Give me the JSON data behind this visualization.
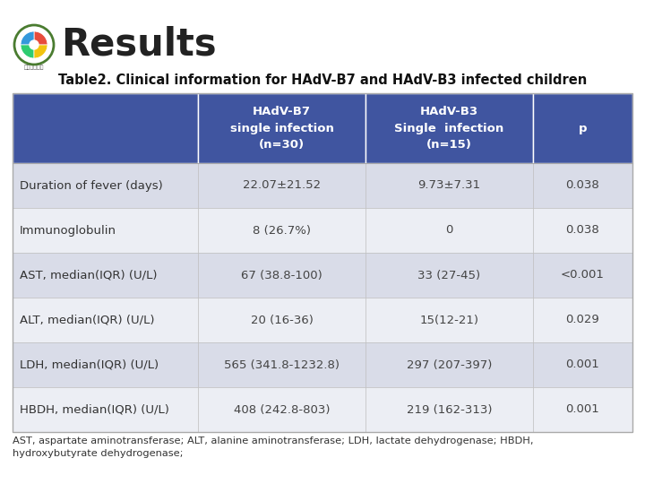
{
  "title": "Results",
  "subtitle": "Table2. Clinical information for HAdV-B7 and HAdV-B3 infected children",
  "header_bg": "#4055a0",
  "header_text_color": "#ffffff",
  "row_bg_odd": "#d9dce8",
  "row_bg_even": "#eceef4",
  "col_header": [
    "HAdV-B7\nsingle infection\n(n=30)",
    "HAdV-B3\nSingle  infection\n(n=15)",
    "p"
  ],
  "row_labels": [
    "Duration of fever (days)",
    "Immunoglobulin",
    "AST, median(IQR) (U/L)",
    "ALT, median(IQR) (U/L)",
    "LDH, median(IQR) (U/L)",
    "HBDH, median(IQR) (U/L)"
  ],
  "data": [
    [
      "22.07±21.52",
      "9.73±7.31",
      "0.038"
    ],
    [
      "8 (26.7%)",
      "0",
      "0.038"
    ],
    [
      "67 (38.8-100)",
      "33 (27-45)",
      "<0.001"
    ],
    [
      "20 (16-36)",
      "15(12-21)",
      "0.029"
    ],
    [
      "565 (341.8-1232.8)",
      "297 (207-397)",
      "0.001"
    ],
    [
      "408 (242.8-803)",
      "219 (162-313)",
      "0.001"
    ]
  ],
  "footnote": "AST, aspartate aminotransferase; ALT, alanine aminotransferase; LDH, lactate dehydrogenase; HBDH,\nhydroxybutyrate dehydrogenase;",
  "bg_color": "#ffffff",
  "logo_colors": [
    "#e74c3c",
    "#3498db",
    "#2ecc71",
    "#f1c40f"
  ],
  "logo_ring_color": "#4a7c30",
  "table_border_color": "#aaaaaa",
  "cell_border_color": "#bbbbbb",
  "label_text_color": "#333333",
  "data_text_color": "#444444"
}
